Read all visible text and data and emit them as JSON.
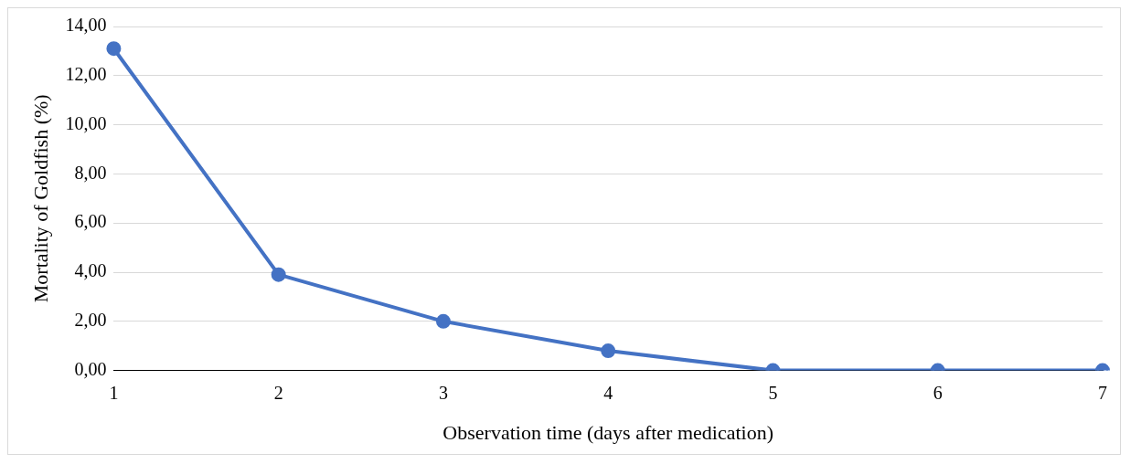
{
  "chart_data": {
    "type": "line",
    "xlabel": "Observation time (days after medication)",
    "ylabel": "Mortality of Goldfish (%)",
    "categories": [
      "1",
      "2",
      "3",
      "4",
      "5",
      "6",
      "7"
    ],
    "series": [
      {
        "color": "#4472c4",
        "values": [
          13.1,
          3.9,
          2.0,
          0.8,
          0,
          0,
          0
        ]
      }
    ],
    "ylim": [
      0,
      14
    ],
    "yticks": [
      {
        "value": 0,
        "label": "0,00"
      },
      {
        "value": 2,
        "label": "2,00"
      },
      {
        "value": 4,
        "label": "4,00"
      },
      {
        "value": 6,
        "label": "6,00"
      },
      {
        "value": 8,
        "label": "8,00"
      },
      {
        "value": 10,
        "label": "10,00"
      },
      {
        "value": 12,
        "label": "12,00"
      },
      {
        "value": 14,
        "label": "14,00"
      }
    ],
    "grid": "y",
    "legend": false,
    "marker": "circle",
    "line_style": "solid"
  }
}
